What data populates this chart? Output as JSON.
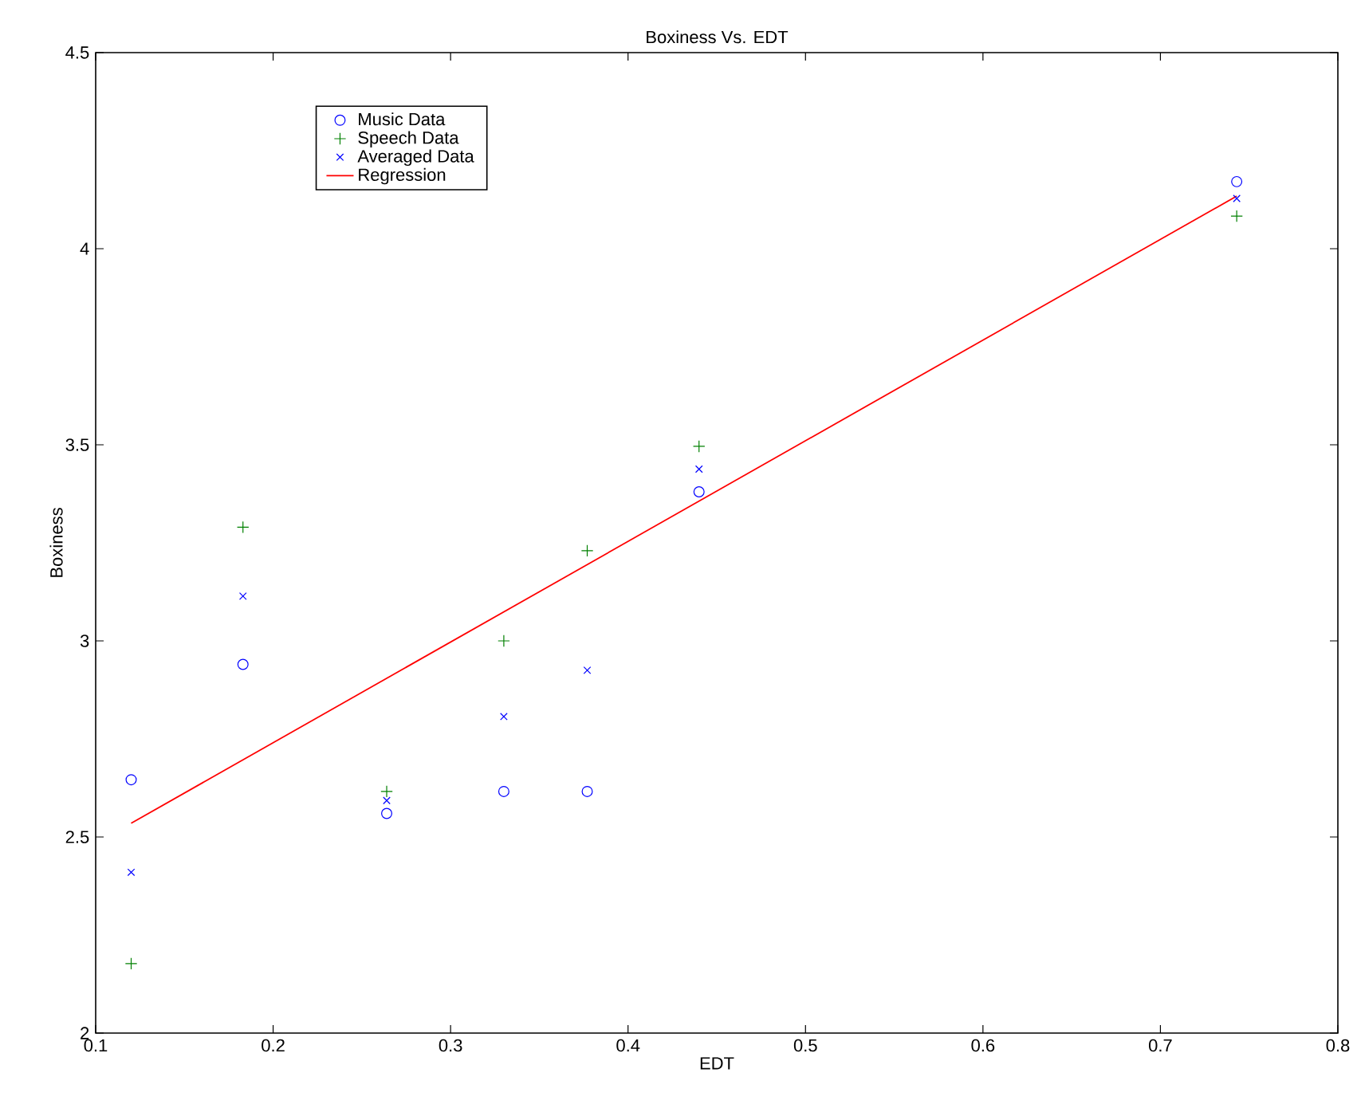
{
  "chart_data": {
    "type": "scatter",
    "title": "Boxiness Vs. EDT",
    "xlabel": "EDT",
    "ylabel": "Boxiness",
    "xlim": [
      0.1,
      0.8
    ],
    "xticks": [
      0.1,
      0.2,
      0.3,
      0.4,
      0.5,
      0.6,
      0.7,
      0.8
    ],
    "ylim": [
      2,
      4.5
    ],
    "yticks": [
      2,
      2.5,
      3,
      3.5,
      4,
      4.5
    ],
    "legend": "top left",
    "grid": false,
    "x": [
      0.12,
      0.183,
      0.264,
      0.33,
      0.377,
      0.44,
      0.743
    ],
    "series": [
      {
        "name": "Music Data",
        "color": "#0000ff",
        "marker": "circle",
        "values": [
          2.646,
          2.94,
          2.56,
          2.616,
          2.616,
          3.38,
          4.171
        ]
      },
      {
        "name": "Speech Data",
        "color": "#008000",
        "marker": "plus",
        "values": [
          2.177,
          3.29,
          2.616,
          3.0,
          3.23,
          3.496,
          4.083
        ]
      },
      {
        "name": "Averaged Data",
        "color": "#0000ff",
        "marker": "cross",
        "values": [
          2.41,
          3.114,
          2.593,
          2.807,
          2.925,
          3.438,
          4.128
        ]
      },
      {
        "name": "Regression",
        "type": "line",
        "color": "#ff0000",
        "marker": "none",
        "x": [
          0.12,
          0.743
        ],
        "values": [
          2.535,
          4.134
        ]
      }
    ]
  }
}
